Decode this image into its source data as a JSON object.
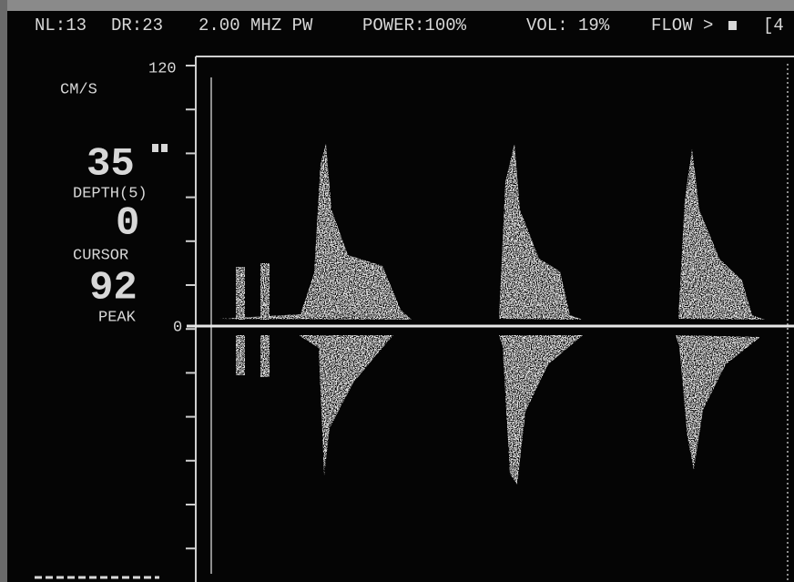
{
  "header": {
    "nl": "NL:13",
    "dr": "DR:23",
    "frequency": "2.00 MHZ PW",
    "power": "POWER:100%",
    "volume": "VOL: 19%",
    "flow": "FLOW >",
    "extra": "[4"
  },
  "scale": {
    "unit": "CM/S",
    "max": "120",
    "zero": "0"
  },
  "readouts": {
    "depth_value": "35",
    "depth_label": "DEPTH(5)",
    "cursor_value": "0",
    "cursor_label": "CURSOR",
    "peak_value": "92",
    "peak_label": "PEAK"
  }
}
